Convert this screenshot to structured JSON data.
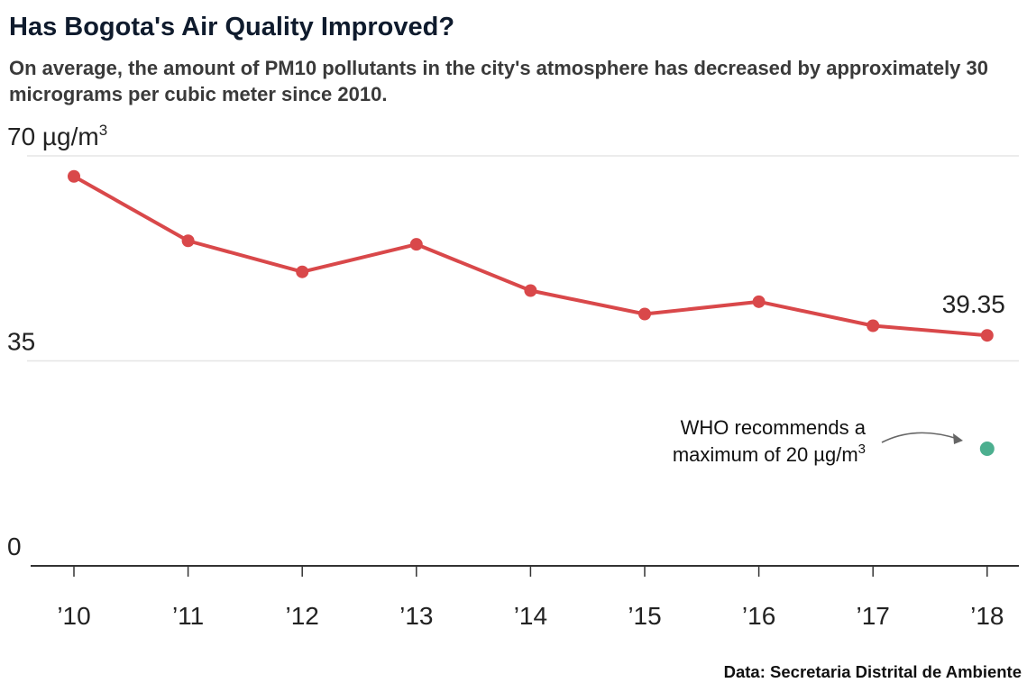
{
  "title": "Has Bogota's Air Quality Improved?",
  "subtitle": "On average, the amount of PM10 pollutants in the city's atmosphere has decreased by approximately 30 micrograms per cubic meter since 2010.",
  "source": "Data: Secretaria Distrital de Ambiente",
  "colors": {
    "series": "#d9484a",
    "who": "#4caf8f",
    "axis": "#333333",
    "grid": "#e6e6e6",
    "arrow": "#666666"
  },
  "chart_data": {
    "type": "line",
    "categories": [
      "’10",
      "’11",
      "’12",
      "’13",
      "’14",
      "’15",
      "’16",
      "’17",
      "’18"
    ],
    "series": [
      {
        "values": [
          66.5,
          55.5,
          50.2,
          54.9,
          47.0,
          43.0,
          45.1,
          41.0,
          39.35
        ]
      }
    ],
    "ylim": [
      0,
      70
    ],
    "y_ticks": [
      {
        "value": 70,
        "label": "70 µg/m",
        "sup": "3"
      },
      {
        "value": 35,
        "label": "35",
        "sup": ""
      },
      {
        "value": 0,
        "label": "0",
        "sup": ""
      }
    ],
    "grid": true,
    "end_label": "39.35",
    "reference_point": {
      "x": "’18",
      "value": 20
    },
    "annotation": {
      "line1": "WHO recommends a",
      "line2": "maximum of 20 µg/m",
      "sup": "3"
    }
  }
}
